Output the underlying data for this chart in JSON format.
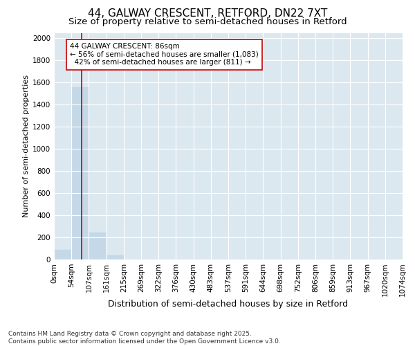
{
  "title1": "44, GALWAY CRESCENT, RETFORD, DN22 7XT",
  "title2": "Size of property relative to semi-detached houses in Retford",
  "xlabel": "Distribution of semi-detached houses by size in Retford",
  "ylabel": "Number of semi-detached properties",
  "bin_edges": [
    0,
    53.7,
    107.4,
    161.1,
    214.8,
    268.5,
    322.2,
    375.9,
    429.6,
    483.3,
    537.0,
    590.7,
    644.4,
    698.1,
    751.8,
    805.5,
    859.2,
    912.9,
    966.6,
    1020.3,
    1074.0
  ],
  "bin_labels": [
    "0sqm",
    "54sqm",
    "107sqm",
    "161sqm",
    "215sqm",
    "269sqm",
    "322sqm",
    "376sqm",
    "430sqm",
    "483sqm",
    "537sqm",
    "591sqm",
    "644sqm",
    "698sqm",
    "752sqm",
    "806sqm",
    "859sqm",
    "913sqm",
    "967sqm",
    "1020sqm",
    "1074sqm"
  ],
  "bar_heights": [
    90,
    1560,
    243,
    35,
    0,
    0,
    0,
    0,
    0,
    0,
    0,
    0,
    0,
    0,
    0,
    0,
    0,
    0,
    0,
    0
  ],
  "bar_color": "#c5d8e8",
  "bar_edge_color": "#c5d8e8",
  "property_size": 86,
  "red_line_color": "#cc0000",
  "annotation_text": "44 GALWAY CRESCENT: 86sqm\n← 56% of semi-detached houses are smaller (1,083)\n  42% of semi-detached houses are larger (811) →",
  "annotation_box_color": "#ffffff",
  "annotation_box_edge_color": "#cc0000",
  "ylim": [
    0,
    2050
  ],
  "yticks": [
    0,
    200,
    400,
    600,
    800,
    1000,
    1200,
    1400,
    1600,
    1800,
    2000
  ],
  "background_color": "#dce8f0",
  "grid_color": "#ffffff",
  "footer_text": "Contains HM Land Registry data © Crown copyright and database right 2025.\nContains public sector information licensed under the Open Government Licence v3.0.",
  "title1_fontsize": 11,
  "title2_fontsize": 9.5,
  "xlabel_fontsize": 9,
  "ylabel_fontsize": 8,
  "tick_fontsize": 7.5,
  "annotation_fontsize": 7.5,
  "footer_fontsize": 6.5
}
